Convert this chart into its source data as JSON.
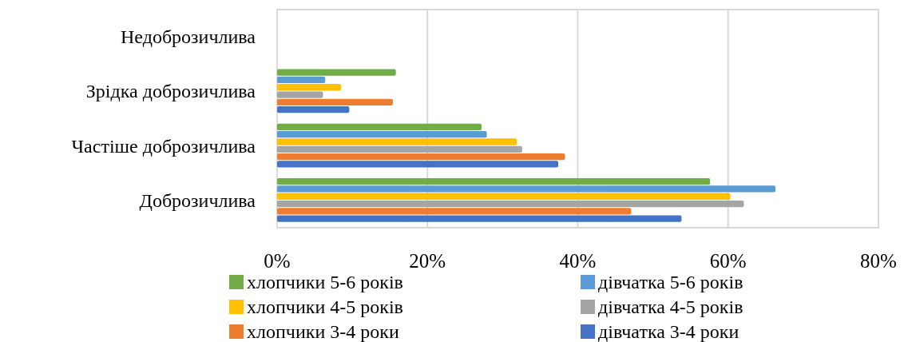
{
  "chart_data": {
    "type": "bar",
    "orientation": "horizontal",
    "categories": [
      "Недоброзичлива",
      "Зрідка доброзичлива",
      "Частіше доброзичлива",
      "Доброзичлива"
    ],
    "series": [
      {
        "name": "хлопчики 5-6 років",
        "color": "#70ad47",
        "values": [
          null,
          15.8,
          27.2,
          57.6
        ]
      },
      {
        "name": "дівчатка 5-6 років",
        "color": "#5b9bd5",
        "values": [
          null,
          6.4,
          27.9,
          66.3
        ]
      },
      {
        "name": "хлопчики 4-5 років",
        "color": "#ffc000",
        "values": [
          null,
          8.5,
          31.9,
          60.3
        ]
      },
      {
        "name": "дівчатка 4-5 років",
        "color": "#a5a5a5",
        "values": [
          null,
          6.1,
          32.6,
          62.1
        ]
      },
      {
        "name": "хлопчики 3-4 роки",
        "color": "#ed7d31",
        "values": [
          null,
          15.4,
          38.3,
          47.1
        ]
      },
      {
        "name": "дівчатка 3-4 роки",
        "color": "#4472c4",
        "values": [
          null,
          9.6,
          37.4,
          53.8
        ]
      }
    ],
    "xlim": [
      0,
      80
    ],
    "xticks": [
      {
        "value": 0,
        "label": "0%"
      },
      {
        "value": 20,
        "label": "20%"
      },
      {
        "value": 40,
        "label": "40%"
      },
      {
        "value": 60,
        "label": "60%"
      },
      {
        "value": 80,
        "label": "80%"
      }
    ],
    "grid": true,
    "legend": "bottom"
  }
}
